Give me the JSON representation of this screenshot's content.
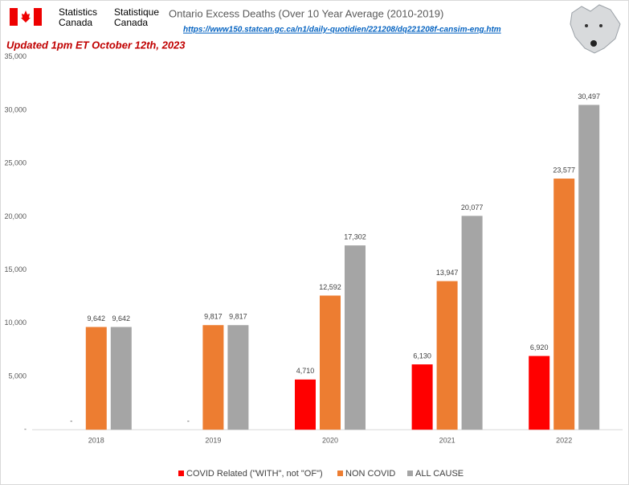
{
  "header": {
    "agency_en": [
      "Statistics",
      "Canada"
    ],
    "agency_fr": [
      "Statistique",
      "Canada"
    ]
  },
  "chart_data": {
    "type": "bar",
    "title": "Ontario Excess Deaths (Over 10 Year Average (2010-2019)",
    "subtitle": "https://www150.statcan.gc.ca/n1/daily-quotidien/221208/dq221208f-cansim-eng.htm",
    "annotation": "Updated 1pm ET October 12th, 2023",
    "categories": [
      "2018",
      "2019",
      "2020",
      "2021",
      "2022"
    ],
    "series": [
      {
        "name": "COVID Related (\"WITH\", not \"OF\")",
        "color": "#ff0000",
        "values": [
          0,
          0,
          4710,
          6130,
          6920
        ],
        "value_labels": [
          "-",
          "-",
          "4,710",
          "6,130",
          "6,920"
        ]
      },
      {
        "name": "NON COVID",
        "color": "#ed7d31",
        "values": [
          9642,
          9817,
          12592,
          13947,
          23577
        ],
        "value_labels": [
          "9,642",
          "9,817",
          "12,592",
          "13,947",
          "23,577"
        ]
      },
      {
        "name": "ALL CAUSE",
        "color": "#a5a5a5",
        "values": [
          9642,
          9817,
          17302,
          20077,
          30497
        ],
        "value_labels": [
          "9,642",
          "9,817",
          "17,302",
          "20,077",
          "30,497"
        ]
      }
    ],
    "ylim": [
      0,
      35000
    ],
    "yticks": [
      {
        "value": 0,
        "label": "-"
      },
      {
        "value": 5000,
        "label": "5,000"
      },
      {
        "value": 10000,
        "label": "10,000"
      },
      {
        "value": 15000,
        "label": "15,000"
      },
      {
        "value": 20000,
        "label": "20,000"
      },
      {
        "value": 25000,
        "label": "25,000"
      },
      {
        "value": 30000,
        "label": "30,000"
      },
      {
        "value": 35000,
        "label": "35,000"
      }
    ],
    "grid": false,
    "legend": "bottom"
  }
}
